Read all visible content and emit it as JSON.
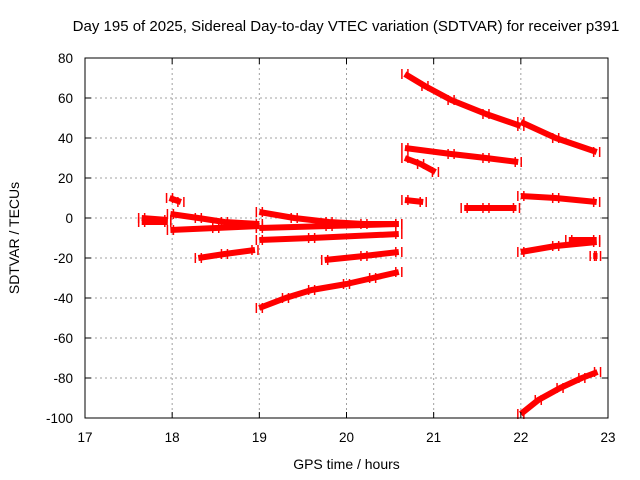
{
  "chart_data": {
    "type": "line",
    "title": "Day 195 of 2025, Sidereal Day-to-day VTEC variation (SDTVAR) for receiver p391",
    "xlabel": "GPS time / hours",
    "ylabel": "SDTVAR / TECUs",
    "xlim": [
      17,
      23
    ],
    "ylim": [
      -100,
      80
    ],
    "xticks": [
      17,
      18,
      19,
      20,
      21,
      22,
      23
    ],
    "yticks": [
      -100,
      -80,
      -60,
      -40,
      -20,
      0,
      20,
      40,
      60,
      80
    ],
    "grid": true,
    "color": "#ff0000",
    "series": [
      {
        "name": "s1",
        "x": [
          17.65,
          17.95
        ],
        "y": [
          0,
          -1
        ]
      },
      {
        "name": "s2",
        "x": [
          17.65,
          17.95
        ],
        "y": [
          -2,
          -2
        ]
      },
      {
        "name": "s3",
        "x": [
          17.97,
          18.1
        ],
        "y": [
          10,
          8
        ]
      },
      {
        "name": "s4",
        "x": [
          17.98,
          18.3,
          18.6,
          19.0
        ],
        "y": [
          2,
          0,
          -2,
          -3
        ]
      },
      {
        "name": "s5",
        "x": [
          17.98,
          18.5,
          19.0
        ],
        "y": [
          -6,
          -5,
          -4
        ]
      },
      {
        "name": "s6",
        "x": [
          18.3,
          18.6,
          18.95
        ],
        "y": [
          -20,
          -18,
          -16
        ]
      },
      {
        "name": "s7",
        "x": [
          19.0,
          19.4,
          19.8,
          20.2,
          20.6
        ],
        "y": [
          3,
          0,
          -2,
          -3,
          -3
        ]
      },
      {
        "name": "s8",
        "x": [
          19.0,
          19.8,
          20.6
        ],
        "y": [
          -5,
          -4,
          -3
        ]
      },
      {
        "name": "s9",
        "x": [
          19.0,
          19.6,
          20.6
        ],
        "y": [
          -11,
          -10,
          -8
        ]
      },
      {
        "name": "s10",
        "x": [
          19.0,
          19.3,
          19.6,
          20.0,
          20.3,
          20.6
        ],
        "y": [
          -45,
          -40,
          -36,
          -33,
          -30,
          -27
        ]
      },
      {
        "name": "s11",
        "x": [
          19.75,
          20.2,
          20.6
        ],
        "y": [
          -21,
          -19,
          -17
        ]
      },
      {
        "name": "s12",
        "x": [
          20.67,
          20.9,
          21.2,
          21.6,
          22.0
        ],
        "y": [
          72,
          66,
          59,
          52,
          46
        ]
      },
      {
        "name": "s13",
        "x": [
          20.67,
          21.2,
          21.6,
          21.97
        ],
        "y": [
          35,
          32,
          30,
          28
        ]
      },
      {
        "name": "s14",
        "x": [
          20.67,
          20.85,
          21.02
        ],
        "y": [
          30,
          27,
          23
        ]
      },
      {
        "name": "s15",
        "x": [
          20.67,
          20.88
        ],
        "y": [
          9,
          8
        ]
      },
      {
        "name": "s16",
        "x": [
          21.35,
          21.6,
          21.95
        ],
        "y": [
          5,
          5,
          5
        ]
      },
      {
        "name": "s17",
        "x": [
          22.0,
          22.4,
          22.87
        ],
        "y": [
          48,
          40,
          33
        ]
      },
      {
        "name": "s18",
        "x": [
          22.0,
          22.4,
          22.87
        ],
        "y": [
          11,
          10,
          8
        ]
      },
      {
        "name": "s19",
        "x": [
          22.0,
          22.4,
          22.87
        ],
        "y": [
          -17,
          -14,
          -12
        ]
      },
      {
        "name": "s20",
        "x": [
          22.55,
          22.87
        ],
        "y": [
          -11,
          -11
        ]
      },
      {
        "name": "s21",
        "x": [
          22.83,
          22.88
        ],
        "y": [
          -19,
          -19
        ]
      },
      {
        "name": "s22",
        "x": [
          22.0,
          22.2,
          22.45,
          22.7,
          22.88
        ],
        "y": [
          -98,
          -91,
          -85,
          -80,
          -77
        ]
      }
    ]
  }
}
